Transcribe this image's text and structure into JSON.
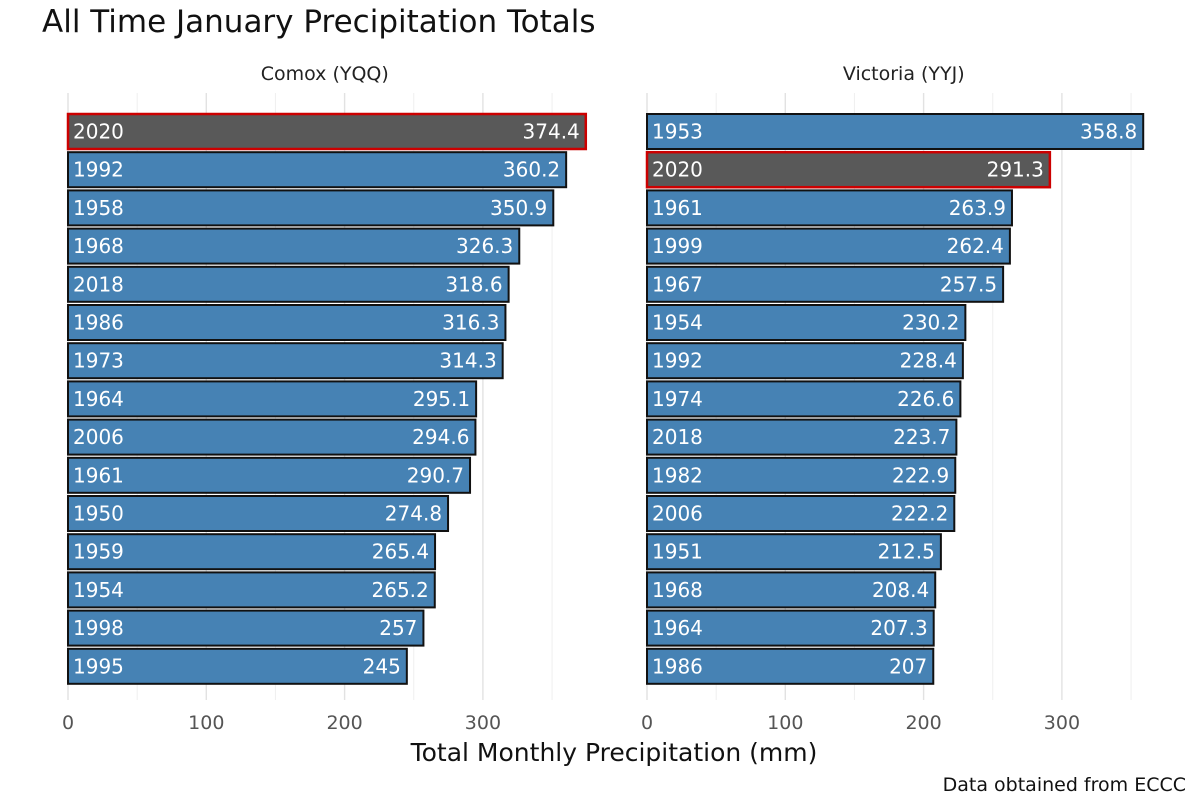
{
  "chart_data": {
    "type": "bar",
    "orientation": "horizontal",
    "title": "All Time January Precipitation Totals",
    "xlabel": "Total Monthly Precipitation (mm)",
    "ylabel": "",
    "caption": "Data obtained from ECCC",
    "xlim": [
      0,
      380
    ],
    "xticks": [
      0,
      100,
      200,
      300
    ],
    "grid": true,
    "colors": {
      "bar": "#4682b4",
      "highlight": "#595959",
      "highlight_outline": "#cc0000",
      "outline": "#111111"
    },
    "highlight_year": "2020",
    "panels": [
      {
        "name": "Comox (YQQ)",
        "categories": [
          "2020",
          "1992",
          "1958",
          "1968",
          "2018",
          "1986",
          "1973",
          "1964",
          "2006",
          "1961",
          "1950",
          "1959",
          "1954",
          "1998",
          "1995"
        ],
        "values": [
          374.4,
          360.2,
          350.9,
          326.3,
          318.6,
          316.3,
          314.3,
          295.1,
          294.6,
          290.7,
          274.8,
          265.4,
          265.2,
          257,
          245
        ]
      },
      {
        "name": "Victoria (YYJ)",
        "categories": [
          "1953",
          "2020",
          "1961",
          "1999",
          "1967",
          "1954",
          "1992",
          "1974",
          "2018",
          "1982",
          "2006",
          "1951",
          "1968",
          "1964",
          "1986"
        ],
        "values": [
          358.8,
          291.3,
          263.9,
          262.4,
          257.5,
          230.2,
          228.4,
          226.6,
          223.7,
          222.9,
          222.2,
          212.5,
          208.4,
          207.3,
          207
        ]
      }
    ]
  }
}
